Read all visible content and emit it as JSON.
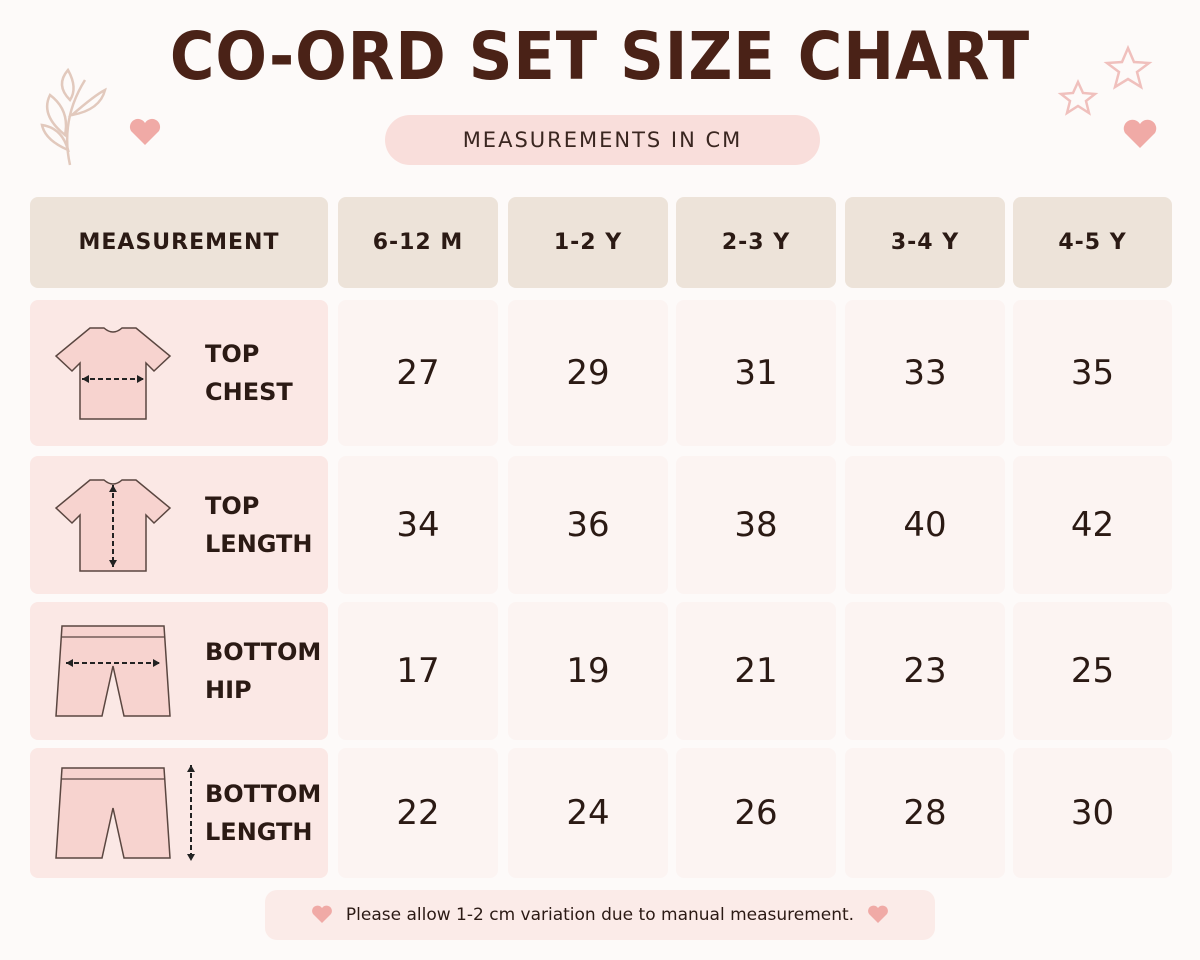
{
  "header": {
    "title": "CO-ORD SET SIZE CHART",
    "subtitle": "MEASUREMENTS IN CM"
  },
  "table": {
    "columns": [
      "MEASUREMENT",
      "6-12 M",
      "1-2 Y",
      "2-3 Y",
      "3-4 Y",
      "4-5 Y"
    ],
    "rows": [
      {
        "label": [
          "TOP",
          "CHEST"
        ],
        "values": [
          "27",
          "29",
          "31",
          "33",
          "35"
        ]
      },
      {
        "label": [
          "TOP",
          "LENGTH"
        ],
        "values": [
          "34",
          "36",
          "38",
          "40",
          "42"
        ]
      },
      {
        "label": [
          "BOTTOM",
          "HIP"
        ],
        "values": [
          "17",
          "19",
          "21",
          "23",
          "25"
        ]
      },
      {
        "label": [
          "BOTTOM",
          "LENGTH"
        ],
        "values": [
          "22",
          "24",
          "26",
          "28",
          "30"
        ]
      }
    ]
  },
  "footer": {
    "note": "Please allow 1-2 cm variation due to manual measurement."
  }
}
